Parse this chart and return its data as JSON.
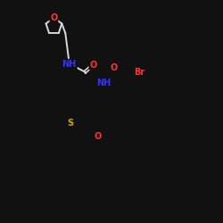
{
  "background_color": "#111111",
  "bond_color": "#d8d8d8",
  "atom_colors": {
    "O": "#ff3333",
    "N": "#3333ff",
    "S": "#ccaa00",
    "Br": "#ff3333",
    "C": "#d8d8d8"
  },
  "figsize": [
    2.5,
    2.5
  ],
  "dpi": 100
}
